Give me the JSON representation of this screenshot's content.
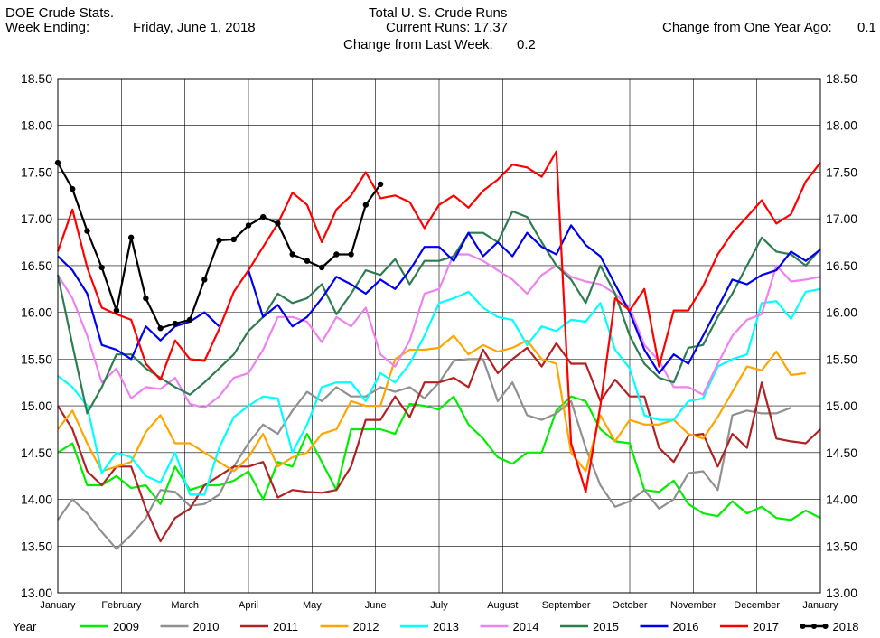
{
  "header": {
    "source": "DOE Crude Stats.",
    "week_label": "Week Ending:",
    "week_date": "Friday, June 1, 2018",
    "title": "Total U. S. Crude Runs",
    "current_runs": "Current Runs: 17.37",
    "change_last_week_label": "Change from Last Week:",
    "change_last_week_value": "0.2",
    "change_year_label": "Change from One Year Ago:",
    "change_year_value": "0.1"
  },
  "chart_data": {
    "type": "line",
    "title": "Total U. S. Crude Runs",
    "ylim": [
      13.0,
      18.5
    ],
    "y_ticks": [
      "13.00",
      "13.50",
      "14.00",
      "14.50",
      "15.00",
      "15.50",
      "16.00",
      "16.50",
      "17.00",
      "17.50",
      "18.00",
      "18.50"
    ],
    "x_ticks": [
      "January",
      "February",
      "March",
      "April",
      "May",
      "June",
      "July",
      "August",
      "September",
      "October",
      "November",
      "December",
      "January"
    ],
    "legend_title": "Year",
    "grid": true,
    "legend_position": "bottom",
    "series": [
      {
        "name": "2009",
        "color": "#00ee00",
        "markers": false,
        "values": [
          14.5,
          14.6,
          14.15,
          14.15,
          14.25,
          14.12,
          14.15,
          13.95,
          14.35,
          14.1,
          14.15,
          14.15,
          14.2,
          14.3,
          14.0,
          14.4,
          14.35,
          14.7,
          14.4,
          14.1,
          14.75,
          14.75,
          14.75,
          14.7,
          15.02,
          15.0,
          14.96,
          15.1,
          14.8,
          14.65,
          14.45,
          14.38,
          14.5,
          14.5,
          14.95,
          15.1,
          15.05,
          14.75,
          14.62,
          14.6,
          14.1,
          14.08,
          14.2,
          13.95,
          13.85,
          13.82,
          13.98,
          13.85,
          13.92,
          13.8,
          13.78,
          13.88,
          13.8
        ]
      },
      {
        "name": "2010",
        "color": "#909090",
        "markers": false,
        "values": [
          13.78,
          14.0,
          13.85,
          13.65,
          13.47,
          13.62,
          13.8,
          14.1,
          14.08,
          13.93,
          13.95,
          14.05,
          14.35,
          14.6,
          14.8,
          14.7,
          14.95,
          15.15,
          15.05,
          15.2,
          15.1,
          15.1,
          15.2,
          15.15,
          15.2,
          15.08,
          15.25,
          15.48,
          15.5,
          15.5,
          15.05,
          15.25,
          14.9,
          14.85,
          14.92,
          15.05,
          14.55,
          14.15,
          13.92,
          13.98,
          14.1,
          13.9,
          14.0,
          14.28,
          14.3,
          14.1,
          14.9,
          14.95,
          14.92,
          14.92,
          14.98
        ]
      },
      {
        "name": "2011",
        "color": "#b22222",
        "markers": false,
        "values": [
          15.0,
          14.75,
          14.3,
          14.15,
          14.35,
          14.35,
          13.9,
          13.55,
          13.8,
          13.9,
          14.15,
          14.25,
          14.35,
          14.35,
          14.4,
          14.02,
          14.1,
          14.08,
          14.07,
          14.1,
          14.35,
          14.85,
          14.85,
          15.1,
          14.88,
          15.25,
          15.25,
          15.3,
          15.2,
          15.6,
          15.35,
          15.5,
          15.62,
          15.42,
          15.67,
          15.45,
          15.45,
          15.05,
          15.28,
          15.1,
          15.1,
          14.55,
          14.4,
          14.68,
          14.7,
          14.35,
          14.7,
          14.55,
          15.25,
          14.65,
          14.62,
          14.6,
          14.75
        ]
      },
      {
        "name": "2012",
        "color": "#ffa500",
        "markers": false,
        "values": [
          14.75,
          14.95,
          14.6,
          14.3,
          14.35,
          14.4,
          14.72,
          14.9,
          14.6,
          14.6,
          14.5,
          14.4,
          14.3,
          14.45,
          14.7,
          14.35,
          14.45,
          14.5,
          14.7,
          14.75,
          15.05,
          15.0,
          15.0,
          15.5,
          15.6,
          15.6,
          15.62,
          15.75,
          15.55,
          15.65,
          15.58,
          15.62,
          15.7,
          15.5,
          15.45,
          14.5,
          14.3,
          14.9,
          14.62,
          14.85,
          14.8,
          14.8,
          14.85,
          14.7,
          14.65,
          14.88,
          15.15,
          15.42,
          15.38,
          15.58,
          15.33,
          15.35
        ]
      },
      {
        "name": "2013",
        "color": "#00ffff",
        "markers": false,
        "values": [
          15.32,
          15.2,
          15.0,
          14.28,
          14.5,
          14.45,
          14.25,
          14.18,
          14.5,
          14.05,
          14.05,
          14.55,
          14.88,
          15.0,
          15.1,
          15.08,
          14.5,
          14.8,
          15.2,
          15.25,
          15.25,
          15.05,
          15.35,
          15.25,
          15.45,
          15.75,
          16.1,
          16.15,
          16.22,
          16.05,
          15.95,
          15.92,
          15.65,
          15.85,
          15.8,
          15.92,
          15.9,
          16.1,
          15.6,
          15.4,
          14.9,
          14.85,
          14.85,
          15.05,
          15.08,
          15.42,
          15.5,
          15.55,
          16.1,
          16.12,
          15.93,
          16.22,
          16.25
        ]
      },
      {
        "name": "2014",
        "color": "#ee82ee",
        "markers": false,
        "values": [
          16.4,
          16.15,
          15.75,
          15.25,
          15.4,
          15.08,
          15.2,
          15.18,
          15.3,
          15.02,
          14.98,
          15.1,
          15.3,
          15.35,
          15.6,
          15.95,
          15.95,
          15.9,
          15.68,
          15.95,
          15.85,
          16.05,
          15.55,
          15.42,
          15.7,
          16.2,
          16.25,
          16.62,
          16.62,
          16.55,
          16.45,
          16.35,
          16.2,
          16.4,
          16.5,
          16.38,
          16.33,
          16.3,
          16.2,
          16.05,
          15.65,
          15.48,
          15.2,
          15.2,
          15.12,
          15.45,
          15.75,
          15.92,
          15.98,
          16.5,
          16.33,
          16.35,
          16.38
        ]
      },
      {
        "name": "2015",
        "color": "#2e7d4f",
        "markers": false,
        "values": [
          16.4,
          15.65,
          14.92,
          15.2,
          15.55,
          15.55,
          15.4,
          15.3,
          15.2,
          15.12,
          15.25,
          15.4,
          15.55,
          15.8,
          15.95,
          16.2,
          16.1,
          16.15,
          16.3,
          15.98,
          16.2,
          16.45,
          16.4,
          16.57,
          16.3,
          16.55,
          16.55,
          16.6,
          16.85,
          16.85,
          16.75,
          17.08,
          17.02,
          16.75,
          16.5,
          16.35,
          16.1,
          16.5,
          16.2,
          15.75,
          15.45,
          15.3,
          15.25,
          15.62,
          15.65,
          15.95,
          16.2,
          16.5,
          16.8,
          16.65,
          16.62,
          16.5,
          16.68
        ]
      },
      {
        "name": "2016",
        "color": "#0000ee",
        "markers": false,
        "values": [
          16.6,
          16.45,
          16.2,
          15.65,
          15.6,
          15.5,
          15.85,
          15.7,
          15.85,
          15.9,
          16.0,
          15.85,
          null,
          16.45,
          15.95,
          16.08,
          15.85,
          15.95,
          16.15,
          16.38,
          16.3,
          16.2,
          16.35,
          16.25,
          16.45,
          16.7,
          16.7,
          16.55,
          16.85,
          16.6,
          16.75,
          16.6,
          16.85,
          16.7,
          16.62,
          16.93,
          16.72,
          16.6,
          16.3,
          16.0,
          15.6,
          15.35,
          15.55,
          15.45,
          15.75,
          16.05,
          16.35,
          16.3,
          16.4,
          16.45,
          16.65,
          16.55,
          16.67
        ]
      },
      {
        "name": "2017",
        "color": "#ff0000",
        "markers": false,
        "values": [
          16.65,
          17.1,
          16.48,
          16.05,
          15.98,
          15.92,
          15.45,
          15.28,
          15.7,
          15.5,
          15.48,
          15.82,
          16.22,
          16.45,
          16.7,
          16.95,
          17.28,
          17.15,
          16.75,
          17.1,
          17.25,
          17.5,
          17.22,
          17.25,
          17.18,
          16.9,
          17.15,
          17.25,
          17.12,
          17.3,
          17.42,
          17.58,
          17.55,
          17.45,
          17.72,
          14.6,
          14.08,
          15.0,
          16.15,
          16.02,
          16.25,
          15.42,
          16.02,
          16.02,
          16.28,
          16.62,
          16.85,
          17.02,
          17.2,
          16.95,
          17.05,
          17.4,
          17.6
        ]
      },
      {
        "name": "2018",
        "color": "#000000",
        "markers": true,
        "values": [
          17.6,
          17.32,
          16.87,
          16.48,
          16.02,
          16.8,
          16.15,
          15.83,
          15.88,
          15.92,
          16.35,
          16.77,
          16.78,
          16.93,
          17.02,
          16.95,
          16.62,
          16.55,
          16.48,
          16.62,
          16.62,
          17.15,
          17.37
        ]
      }
    ]
  }
}
